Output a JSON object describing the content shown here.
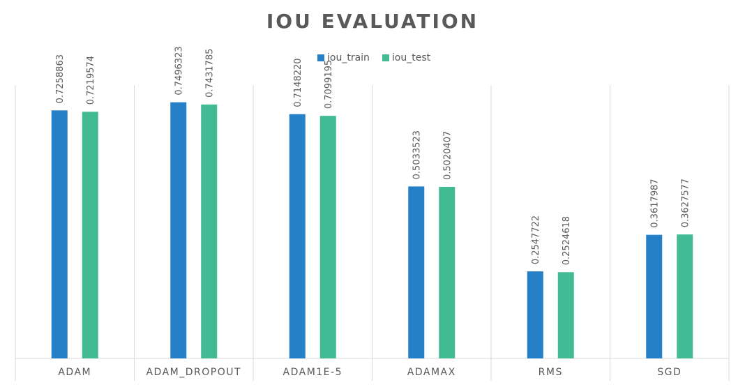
{
  "chart_data": {
    "type": "bar",
    "title": "IOU EVALUATION",
    "categories": [
      "ADAM",
      "ADAM_DROPOUT",
      "ADAM1E-5",
      "ADAMAX",
      "RMS",
      "SGD"
    ],
    "series": [
      {
        "name": "iou_train",
        "color": "#2580C7",
        "values": [
          0.7258863,
          0.7496323,
          0.714822,
          0.5033523,
          0.2547722,
          0.3617987
        ],
        "labels": [
          "0.7258863",
          "0.7496323",
          "0.7148220",
          "0.5033523",
          "0.2547722",
          "0.3617987"
        ]
      },
      {
        "name": "iou_test",
        "color": "#42BB94",
        "values": [
          0.7219574,
          0.7431785,
          0.7099195,
          0.5020407,
          0.2524618,
          0.3627577
        ],
        "labels": [
          "0.7219574",
          "0.7431785",
          "0.7099195",
          "0.5020407",
          "0.2524618",
          "0.3627577"
        ]
      }
    ],
    "ylim": [
      0,
      0.8
    ],
    "legend_position": "top-center",
    "grid": "vertical category separators"
  }
}
